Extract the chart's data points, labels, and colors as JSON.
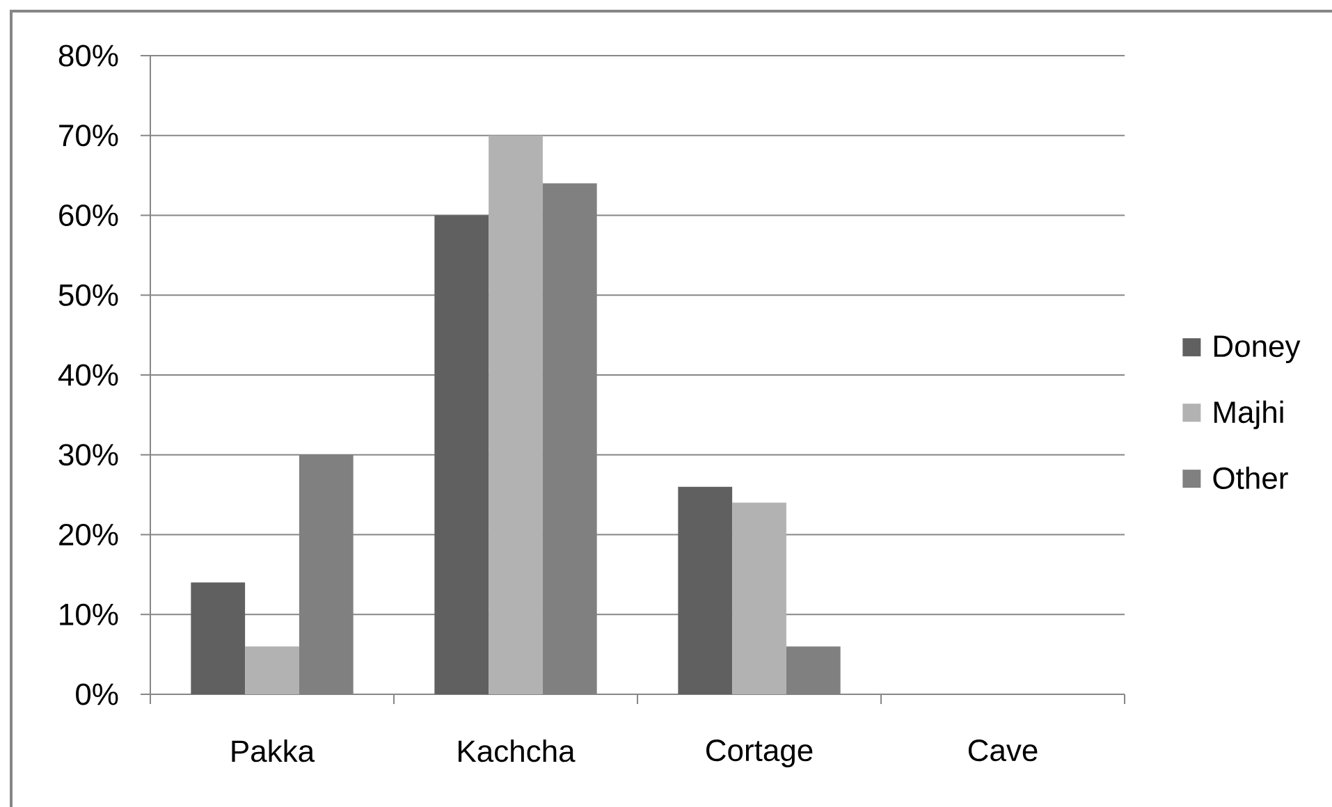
{
  "chart_data": {
    "type": "bar",
    "categories": [
      "Pakka",
      "Kachcha",
      "Cortage",
      "Cave"
    ],
    "series": [
      {
        "name": "Doney",
        "color": "#606060",
        "values": [
          14,
          60,
          26,
          0
        ]
      },
      {
        "name": "Majhi",
        "color": "#b2b2b2",
        "values": [
          6,
          70,
          24,
          0
        ]
      },
      {
        "name": "Other",
        "color": "#808080",
        "values": [
          30,
          64,
          6,
          0
        ]
      }
    ],
    "ylim": [
      0,
      80
    ],
    "yticks": [
      {
        "value": 0,
        "label": "0%"
      },
      {
        "value": 10,
        "label": "10%"
      },
      {
        "value": 20,
        "label": "20%"
      },
      {
        "value": 30,
        "label": "30%"
      },
      {
        "value": 40,
        "label": "40%"
      },
      {
        "value": 50,
        "label": "50%"
      },
      {
        "value": 60,
        "label": "60%"
      },
      {
        "value": 70,
        "label": "70%"
      },
      {
        "value": 80,
        "label": "80%"
      }
    ],
    "grid": "y",
    "legend": "right"
  }
}
